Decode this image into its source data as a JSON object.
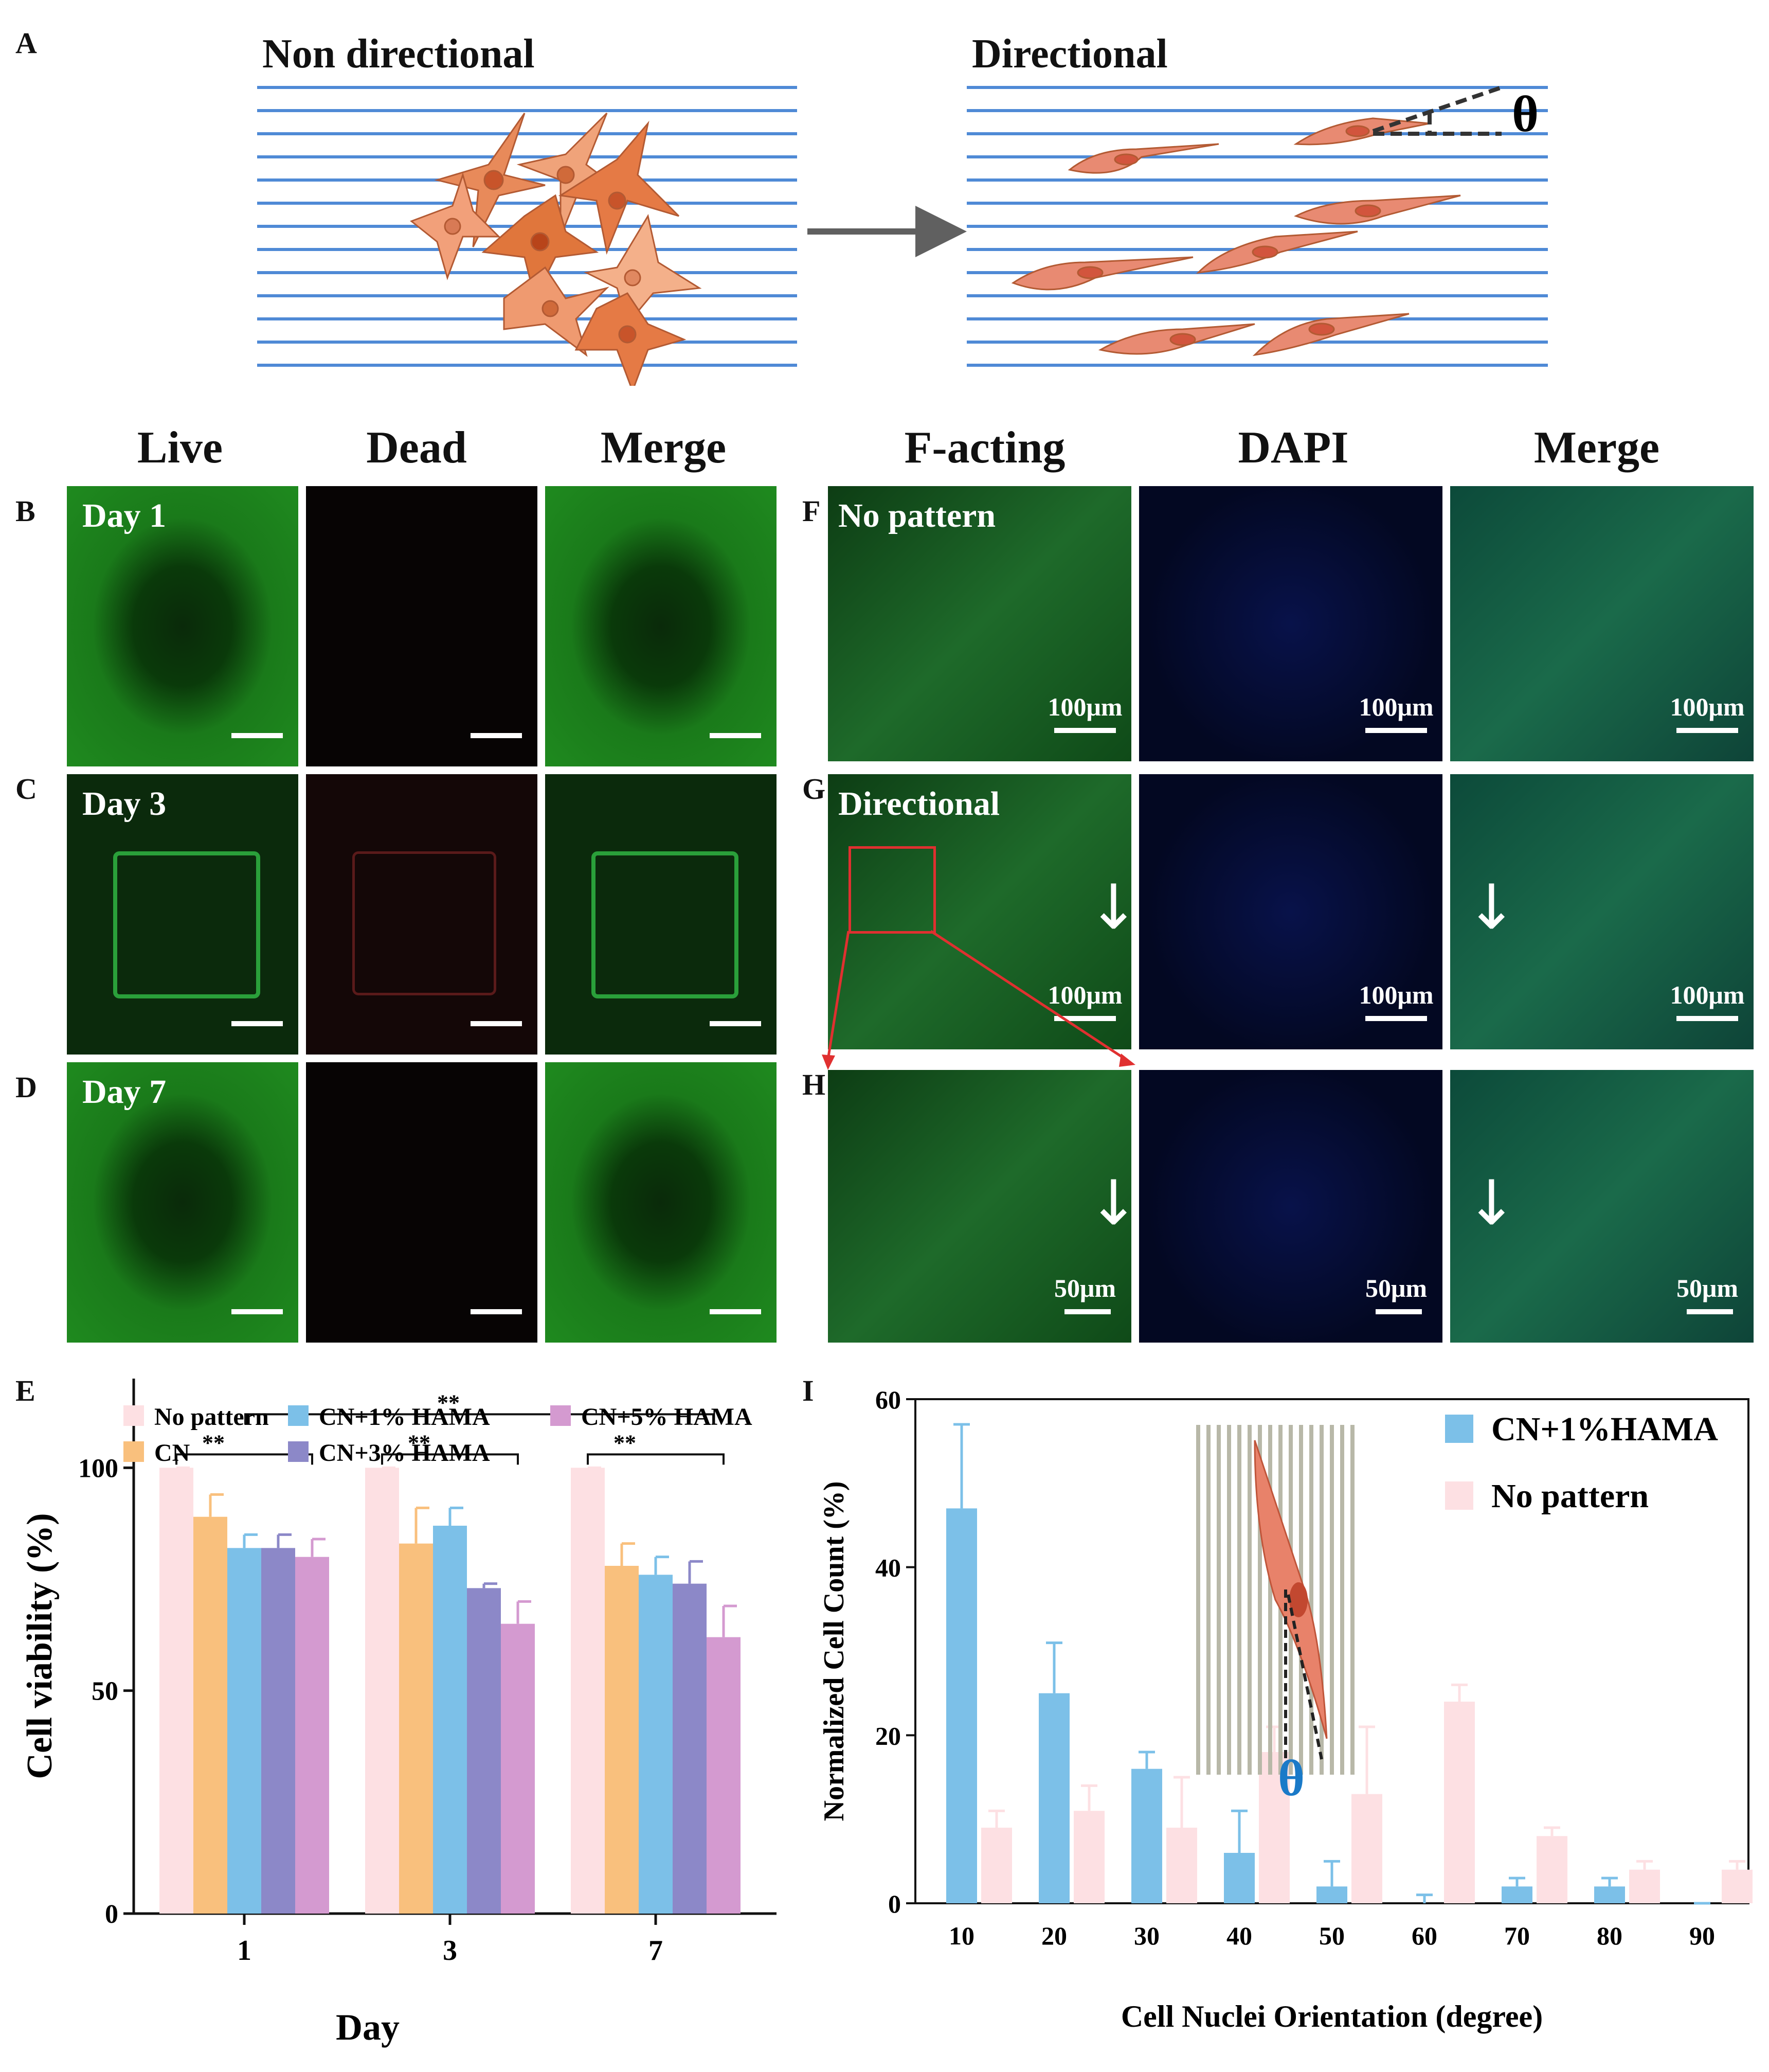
{
  "panel_letters": {
    "A": "A",
    "B": "B",
    "C": "C",
    "D": "D",
    "E": "E",
    "F": "F",
    "G": "G",
    "H": "H",
    "I": "I"
  },
  "schematic": {
    "left_title": "Non directional",
    "right_title": "Directional",
    "theta": "θ"
  },
  "live_dead": {
    "columns": [
      "Live",
      "Dead",
      "Merge"
    ],
    "rows": [
      "Day 1",
      "Day 3",
      "Day 7"
    ]
  },
  "staining": {
    "columns": [
      "F-acting",
      "DAPI",
      "Merge"
    ],
    "rows": [
      "No pattern",
      "Directional"
    ],
    "scale_100": "100μm",
    "scale_50": "50μm"
  },
  "colors": {
    "no_pattern": "#fde0e3",
    "cn": "#f9c07d",
    "cn1": "#7cc0e8",
    "cn3": "#8c88c8",
    "cn5": "#d49ad0",
    "live_green": "#1f8a1f",
    "blue_line": "#4f8ad6",
    "cell_orange": "#e8865a"
  },
  "chart_data": [
    {
      "type": "bar",
      "title": "",
      "xlabel": "Day",
      "ylabel": "Cell viability (%)",
      "categories": [
        "1",
        "3",
        "7"
      ],
      "ylim": [
        0,
        120
      ],
      "yticks": [
        "0",
        "50",
        "100"
      ],
      "series": [
        {
          "name": "No pattern",
          "values": [
            100,
            100,
            100
          ],
          "errors": [
            0,
            0,
            0
          ]
        },
        {
          "name": "CN",
          "values": [
            89,
            83,
            78
          ],
          "errors": [
            5,
            8,
            5
          ]
        },
        {
          "name": "CN+1% HAMA",
          "values": [
            82,
            87,
            76
          ],
          "errors": [
            3,
            4,
            4
          ]
        },
        {
          "name": "CN+3% HAMA",
          "values": [
            82,
            73,
            74
          ],
          "errors": [
            3,
            1,
            5
          ]
        },
        {
          "name": "CN+5% HAMA",
          "values": [
            80,
            65,
            62
          ],
          "errors": [
            4,
            5,
            7
          ]
        }
      ],
      "significance": [
        "**",
        "**",
        "**",
        "**"
      ]
    },
    {
      "type": "bar",
      "title": "",
      "xlabel": "Cell Nuclei Orientation (degree)",
      "ylabel": "Normalized Cell Count (%)",
      "categories": [
        "10",
        "20",
        "30",
        "40",
        "50",
        "60",
        "70",
        "80",
        "90"
      ],
      "ylim": [
        0,
        60
      ],
      "yticks": [
        "0",
        "20",
        "40",
        "60"
      ],
      "series": [
        {
          "name": "CN+1%HAMA",
          "values": [
            47,
            25,
            16,
            6,
            2,
            0,
            2,
            2,
            0
          ],
          "errors": [
            10,
            6,
            2,
            5,
            3,
            1,
            1,
            1,
            0
          ]
        },
        {
          "name": "No pattern",
          "values": [
            9,
            11,
            9,
            18,
            13,
            24,
            8,
            4,
            4
          ],
          "errors": [
            2,
            3,
            6,
            3,
            8,
            2,
            1,
            1,
            1
          ]
        }
      ],
      "inset_symbol": "θ"
    }
  ]
}
